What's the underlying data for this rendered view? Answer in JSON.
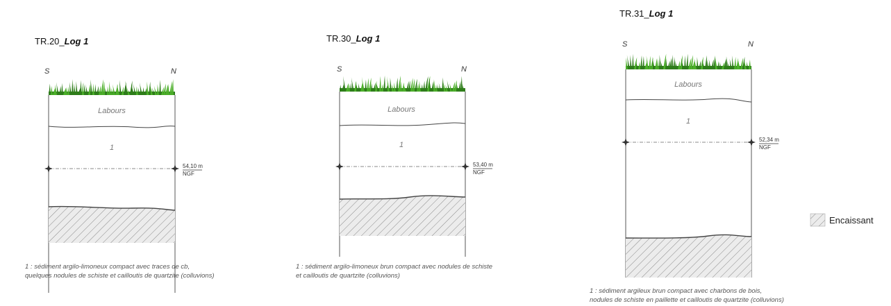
{
  "logs": [
    {
      "title_prefix": "TR.20_",
      "title_suffix": "Log 1",
      "dir_left": "S",
      "dir_right": "N",
      "layer_labours": "Labours",
      "layer_1": "1",
      "altitude_value": "54,10 m",
      "altitude_ref": "NGF",
      "caption_line1": "1 : sédiment argilo-limoneux compact avec traces de cb,",
      "caption_line2": "quelques nodules de schiste et cailloutis de quartzite (colluvions)"
    },
    {
      "title_prefix": "TR.30_",
      "title_suffix": "Log 1",
      "dir_left": "S",
      "dir_right": "N",
      "layer_labours": "Labours",
      "layer_1": "1",
      "altitude_value": "53,40 m",
      "altitude_ref": "NGF",
      "caption_line1": "1 : sédiment argilo-limoneux brun compact avec nodules de schiste",
      "caption_line2": "et cailloutis de quartzite (colluvions)"
    },
    {
      "title_prefix": "TR.31_",
      "title_suffix": "Log 1",
      "dir_left": "S",
      "dir_right": "N",
      "layer_labours": "Labours",
      "layer_1": "1",
      "altitude_value": "52,34 m",
      "altitude_ref": "NGF",
      "caption_line1": "1 : sédiment argileux brun compact avec charbons de bois,",
      "caption_line2": "nodules de schiste en paillette et cailloutis de quartzite (colluvions)"
    }
  ],
  "legend": {
    "label": "Encaissant"
  },
  "colors": {
    "grass": "#4caf2a",
    "grass_dark": "#2e7d1a",
    "hatch": "#888888",
    "hatch_bg": "#e9e9e9"
  }
}
